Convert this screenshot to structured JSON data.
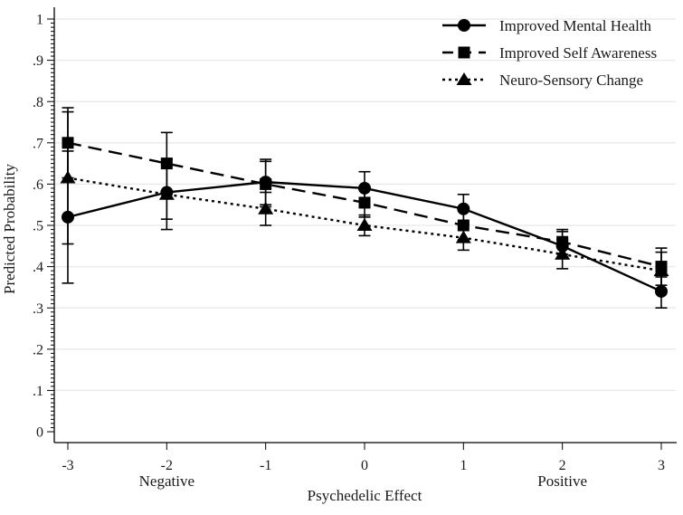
{
  "figure": {
    "background": "#ffffff",
    "text_color": "#1a1a1a",
    "grid_color": "#e8e8e8",
    "axis_color": "#000000",
    "series_color": "#000000"
  },
  "chart_data": {
    "type": "line",
    "title": "",
    "xlabel": "Psychedelic Effect",
    "ylabel": "Predicted Probability",
    "grid": "horizontal",
    "error_bars": true,
    "legend_position": "top-right",
    "x": [
      -3,
      -2,
      -1,
      0,
      1,
      2,
      3
    ],
    "x_tick_labels": [
      "-3",
      "-2",
      "-1",
      "0",
      "1",
      "2",
      "3"
    ],
    "x_sub_labels": [
      {
        "x": -2,
        "label": "Negative"
      },
      {
        "x": 2,
        "label": "Positive"
      }
    ],
    "xlim": [
      -3,
      3
    ],
    "ylim": [
      0,
      1
    ],
    "y_ticks": [
      0,
      0.1,
      0.2,
      0.3,
      0.4,
      0.5,
      0.6,
      0.7,
      0.8,
      0.9,
      1
    ],
    "y_tick_labels": [
      "0",
      ".1",
      ".2",
      ".3",
      ".4",
      ".5",
      ".6",
      ".7",
      ".8",
      ".9",
      "1"
    ],
    "y_minor_tick_step": 0.01,
    "series": [
      {
        "name": "Improved Mental Health",
        "marker": "circle",
        "line_style": "solid",
        "values": [
          0.52,
          0.58,
          0.605,
          0.59,
          0.54,
          0.45,
          0.34
        ],
        "ci_low": [
          0.36,
          0.515,
          0.55,
          0.55,
          0.505,
          0.42,
          0.3
        ],
        "ci_high": [
          0.68,
          0.645,
          0.66,
          0.63,
          0.575,
          0.485,
          0.375
        ]
      },
      {
        "name": "Improved Self Awareness",
        "marker": "square",
        "line_style": "dashed",
        "values": [
          0.7,
          0.65,
          0.6,
          0.555,
          0.5,
          0.46,
          0.4
        ],
        "ci_low": [
          0.615,
          0.58,
          0.545,
          0.52,
          0.465,
          0.43,
          0.355
        ],
        "ci_high": [
          0.785,
          0.725,
          0.655,
          0.59,
          0.535,
          0.49,
          0.445
        ]
      },
      {
        "name": "Neuro-Sensory Change",
        "marker": "triangle",
        "line_style": "dotted",
        "values": [
          0.615,
          0.575,
          0.54,
          0.5,
          0.47,
          0.43,
          0.39
        ],
        "ci_low": [
          0.455,
          0.49,
          0.5,
          0.475,
          0.44,
          0.395,
          0.345
        ],
        "ci_high": [
          0.775,
          0.66,
          0.58,
          0.525,
          0.5,
          0.465,
          0.435
        ]
      }
    ]
  }
}
